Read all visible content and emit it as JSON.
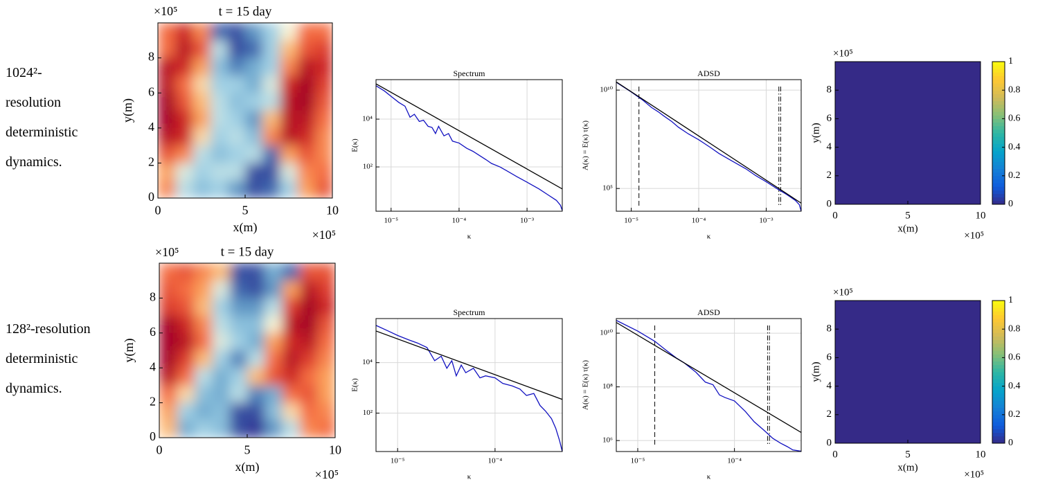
{
  "row_labels": [
    [
      "1024²-",
      "resolution",
      "deterministic",
      "dynamics."
    ],
    [
      "128²-resolution",
      "deterministic",
      "dynamics."
    ]
  ],
  "chart_data": [
    {
      "type": "heatmap",
      "title": "t = 15 day",
      "xlabel": "x(m)",
      "ylabel": "y(m)",
      "x_multiplier": "×10⁵",
      "y_multiplier": "×10⁵",
      "colormap": "RdYlBu_r",
      "clim": [
        -1,
        1
      ],
      "xlim": [
        0,
        1000000
      ],
      "ylim": [
        0,
        1000000
      ],
      "xticks": [
        {
          "value": 0,
          "label": "0"
        },
        {
          "value": 500000,
          "label": "5"
        },
        {
          "value": 1000000,
          "label": "10"
        }
      ],
      "yticks": [
        {
          "value": 0,
          "label": "0"
        },
        {
          "value": 200000,
          "label": "2"
        },
        {
          "value": 400000,
          "label": "4"
        },
        {
          "value": 600000,
          "label": "6"
        },
        {
          "value": 800000,
          "label": "8"
        }
      ],
      "z": [
        [
          0.5,
          0.8,
          0.4,
          -0.8,
          -0.9,
          -0.6,
          -0.3,
          0,
          0.5,
          0.5
        ],
        [
          0.5,
          0.9,
          0.6,
          -0.2,
          -0.9,
          -0.8,
          -0.3,
          0.2,
          0.6,
          0.7
        ],
        [
          0.9,
          0.8,
          0.3,
          -0.4,
          -0.7,
          -0.5,
          -0.3,
          0.4,
          0.9,
          0.8
        ],
        [
          0.9,
          0.5,
          0.1,
          -0.3,
          -0.3,
          -0.5,
          -0.1,
          0.8,
          1,
          0.7
        ],
        [
          1,
          0.6,
          0.2,
          -0.2,
          -0.4,
          -0.3,
          -0.2,
          0.9,
          1,
          0.6
        ],
        [
          1,
          0.8,
          0.3,
          -0.2,
          -0.3,
          -0.6,
          0.2,
          0.9,
          0.9,
          0.5
        ],
        [
          0.9,
          0.8,
          0.1,
          -0.3,
          -0.2,
          -0.4,
          0.4,
          0.9,
          0.8,
          0.4
        ],
        [
          0.6,
          0.4,
          -0.2,
          -0.4,
          -0.3,
          -0.2,
          -0.8,
          0.3,
          0.6,
          0.4
        ],
        [
          0.3,
          -0.1,
          -0.3,
          -0.2,
          -0.2,
          -0.9,
          -0.9,
          -0.1,
          0.4,
          0.5
        ],
        [
          0.4,
          -0.2,
          -0.4,
          -0.3,
          -0.6,
          -0.9,
          -0.8,
          -0.3,
          0.3,
          0.6
        ]
      ]
    },
    {
      "type": "line",
      "title": "Spectrum",
      "xlabel": "κ",
      "ylabel": "E(κ)",
      "xscale": "log",
      "yscale": "log",
      "grid": true,
      "xlim": [
        6e-06,
        0.0033
      ],
      "ylim": [
        1.4,
        450000
      ],
      "xticks": [
        {
          "value": 1e-05,
          "label": "10⁻⁵"
        },
        {
          "value": 0.0001,
          "label": "10⁻⁴"
        },
        {
          "value": 0.001,
          "label": "10⁻³"
        }
      ],
      "yticks": [
        {
          "value": 100,
          "label": "10²"
        },
        {
          "value": 10000,
          "label": "10⁴"
        }
      ],
      "series": [
        {
          "color": "#1010c0",
          "x": [
            6e-06,
            8e-06,
            1e-05,
            1.3e-05,
            1.6e-05,
            1.9e-05,
            2.2e-05,
            2.6e-05,
            3e-05,
            3.5e-05,
            4e-05,
            4.5e-05,
            5e-05,
            6e-05,
            7e-05,
            8e-05,
            0.0001,
            0.00013,
            0.00016,
            0.0002,
            0.00025,
            0.0003,
            0.0004,
            0.0005,
            0.0007,
            0.001,
            0.0015,
            0.002,
            0.0027,
            0.0031,
            0.0033
          ],
          "values": [
            250000,
            150000,
            90000,
            50000,
            35000,
            12000,
            16000,
            8000,
            9000,
            5000,
            4500,
            2500,
            5000,
            2000,
            2500,
            1200,
            1000,
            600,
            450,
            300,
            200,
            140,
            100,
            70,
            40,
            23,
            12,
            7,
            4,
            2.5,
            1.5
          ]
        },
        {
          "color": "#000000",
          "x": [
            6e-06,
            0.0033
          ],
          "values": [
            300000,
            12
          ]
        }
      ]
    },
    {
      "type": "line",
      "title": "ADSD",
      "xlabel": "κ",
      "ylabel": "A(κ) = E(κ) τ(κ)",
      "xscale": "log",
      "yscale": "log",
      "grid": true,
      "xlim": [
        6e-06,
        0.0033
      ],
      "ylim": [
        7000,
        34000000000
      ],
      "xticks": [
        {
          "value": 1e-05,
          "label": "10⁻⁵"
        },
        {
          "value": 0.0001,
          "label": "10⁻⁴"
        },
        {
          "value": 0.001,
          "label": "10⁻³"
        }
      ],
      "yticks": [
        {
          "value": 100000,
          "label": "10⁵"
        },
        {
          "value": 10000000000,
          "label": "10¹⁰"
        }
      ],
      "vlines": [
        {
          "value": 1.3e-05,
          "style": "dashed"
        },
        {
          "value": 0.00154,
          "style": "dashdot"
        },
        {
          "value": 0.00164,
          "style": "dashdot"
        }
      ],
      "series": [
        {
          "color": "#1010c0",
          "x": [
            6e-06,
            1e-05,
            1.5e-05,
            2e-05,
            2.5e-05,
            3e-05,
            4e-05,
            5e-05,
            7e-05,
            0.0001,
            0.00015,
            0.0002,
            0.0003,
            0.0005,
            0.0007,
            0.001,
            0.0015,
            0.002,
            0.0027,
            0.0031,
            0.0033
          ],
          "values": [
            25000000000,
            8000000000,
            3000000000,
            1300000000,
            800000000,
            500000000,
            250000000,
            130000000,
            60000000,
            30000000,
            12000000,
            6000000,
            2700000,
            1000000,
            450000,
            220000,
            90000,
            50000,
            25000,
            15000,
            7000
          ]
        },
        {
          "color": "#000000",
          "x": [
            6e-06,
            0.0033
          ],
          "values": [
            26000000000,
            18000
          ]
        }
      ]
    },
    {
      "type": "heatmap",
      "x_multiplier": "×10⁵",
      "y_multiplier": "×10⁵",
      "xlabel": "x(m)",
      "ylabel": "y(m)",
      "colormap": "parula",
      "clim": [
        0,
        1
      ],
      "cticks": [
        0,
        0.2,
        0.4,
        0.6,
        0.8,
        1
      ],
      "xlim": [
        0,
        1000000
      ],
      "ylim": [
        0,
        1000000
      ],
      "xticks": [
        {
          "value": 0,
          "label": "0"
        },
        {
          "value": 500000,
          "label": "5"
        },
        {
          "value": 1000000,
          "label": "10"
        }
      ],
      "yticks": [
        {
          "value": 0,
          "label": "0"
        },
        {
          "value": 200000,
          "label": "2"
        },
        {
          "value": 400000,
          "label": "4"
        },
        {
          "value": 600000,
          "label": "6"
        },
        {
          "value": 800000,
          "label": "8"
        }
      ],
      "z": [
        [
          0
        ]
      ]
    },
    {
      "type": "heatmap",
      "title": "t = 15 day",
      "xlabel": "x(m)",
      "ylabel": "y(m)",
      "x_multiplier": "×10⁵",
      "y_multiplier": "×10⁵",
      "colormap": "RdYlBu_r",
      "clim": [
        -1,
        1
      ],
      "xlim": [
        0,
        1000000
      ],
      "ylim": [
        0,
        1000000
      ],
      "xticks": [
        {
          "value": 0,
          "label": "0"
        },
        {
          "value": 500000,
          "label": "5"
        },
        {
          "value": 1000000,
          "label": "10"
        }
      ],
      "yticks": [
        {
          "value": 0,
          "label": "0"
        },
        {
          "value": 200000,
          "label": "2"
        },
        {
          "value": 400000,
          "label": "4"
        },
        {
          "value": 600000,
          "label": "6"
        },
        {
          "value": 800000,
          "label": "8"
        }
      ],
      "z": [
        [
          0.5,
          0.6,
          0.4,
          0.2,
          -0.9,
          -0.9,
          -0.5,
          -0.8,
          0.6,
          0.6
        ],
        [
          0.6,
          0.5,
          0.3,
          -0.1,
          -0.8,
          -0.9,
          -0.6,
          0.3,
          0.9,
          0.7
        ],
        [
          0.7,
          0.6,
          0.2,
          -0.3,
          -0.6,
          -0.6,
          -0.2,
          0.7,
          1,
          0.8
        ],
        [
          1,
          0.8,
          0.4,
          -0.2,
          -0.4,
          -0.4,
          0,
          0.9,
          1,
          0.6
        ],
        [
          1,
          0.9,
          0.5,
          -0.1,
          -0.3,
          -0.5,
          0.3,
          0.8,
          0.9,
          0.5
        ],
        [
          1,
          0.7,
          0.2,
          -0.3,
          -0.7,
          -0.2,
          0.5,
          0.9,
          0.7,
          0.4
        ],
        [
          0.9,
          0.5,
          -0.2,
          -0.5,
          -0.3,
          0.2,
          0.6,
          0.8,
          0.5,
          0.3
        ],
        [
          0.5,
          0.1,
          -0.4,
          -0.5,
          -0.2,
          -0.7,
          -0.5,
          0.5,
          0.6,
          0.3
        ],
        [
          0.3,
          -0.3,
          -0.5,
          -0.4,
          -0.9,
          -0.9,
          -0.4,
          0.1,
          0.5,
          0.4
        ],
        [
          0.2,
          -0.5,
          -0.3,
          -0.4,
          -0.9,
          -1,
          -0.6,
          -0.2,
          0.4,
          0.5
        ]
      ]
    },
    {
      "type": "line",
      "title": "Spectrum",
      "xlabel": "κ",
      "ylabel": "E(κ)",
      "xscale": "log",
      "yscale": "log",
      "grid": true,
      "xlim": [
        6e-06,
        0.00049
      ],
      "ylim": [
        3,
        560000
      ],
      "xticks": [
        {
          "value": 1e-05,
          "label": "10⁻⁵"
        },
        {
          "value": 0.0001,
          "label": "10⁻⁴"
        }
      ],
      "yticks": [
        {
          "value": 100,
          "label": "10²"
        },
        {
          "value": 10000,
          "label": "10⁴"
        }
      ],
      "series": [
        {
          "color": "#1010c0",
          "x": [
            6e-06,
            8e-06,
            1e-05,
            1.3e-05,
            1.6e-05,
            2e-05,
            2.4e-05,
            2.8e-05,
            3.2e-05,
            3.6e-05,
            4e-05,
            4.5e-05,
            5e-05,
            6e-05,
            7e-05,
            8e-05,
            0.0001,
            0.00012,
            0.00015,
            0.00018,
            0.00021,
            0.00025,
            0.00029,
            0.00033,
            0.00038,
            0.00042,
            0.00046,
            0.00049
          ],
          "values": [
            300000,
            180000,
            120000,
            80000,
            60000,
            40000,
            12000,
            18000,
            6000,
            12000,
            3000,
            8000,
            4000,
            6000,
            2500,
            3000,
            2500,
            1500,
            1200,
            900,
            500,
            600,
            200,
            120,
            60,
            25,
            8,
            3
          ]
        },
        {
          "color": "#000000",
          "x": [
            6e-06,
            0.00049
          ],
          "values": [
            180000,
            350
          ]
        }
      ]
    },
    {
      "type": "line",
      "title": "ADSD",
      "xlabel": "κ",
      "ylabel": "A(κ) = E(κ) τ(κ)",
      "xscale": "log",
      "yscale": "log",
      "grid": true,
      "xlim": [
        6e-06,
        0.00049
      ],
      "ylim": [
        390000,
        35000000000
      ],
      "xticks": [
        {
          "value": 1e-05,
          "label": "10⁻⁵"
        },
        {
          "value": 0.0001,
          "label": "10⁻⁴"
        }
      ],
      "yticks": [
        {
          "value": 1000000,
          "label": "10⁶"
        },
        {
          "value": 100000000,
          "label": "10⁸"
        },
        {
          "value": 10000000000,
          "label": "10¹⁰"
        }
      ],
      "vlines": [
        {
          "value": 1.5e-05,
          "style": "dashed"
        },
        {
          "value": 0.00022,
          "style": "dashdot"
        },
        {
          "value": 0.00023,
          "style": "dashdot"
        }
      ],
      "series": [
        {
          "color": "#1010c0",
          "x": [
            6e-06,
            1e-05,
            1.5e-05,
            2e-05,
            2.5e-05,
            3e-05,
            4e-05,
            5e-05,
            6e-05,
            7e-05,
            8e-05,
            0.0001,
            0.00013,
            0.00016,
            0.0002,
            0.00025,
            0.0003,
            0.00035,
            0.0004,
            0.00049
          ],
          "values": [
            30000000000,
            12000000000,
            5000000000,
            2200000000,
            1200000000,
            800000000,
            350000000,
            150000000,
            120000000,
            50000000,
            40000000,
            30000000,
            12000000,
            5000000,
            2500000,
            1200000,
            800000,
            600000,
            450000,
            400000
          ]
        },
        {
          "color": "#000000",
          "x": [
            6e-06,
            0.00049
          ],
          "values": [
            25000000000,
            2000000
          ]
        }
      ]
    },
    {
      "type": "heatmap",
      "x_multiplier": "×10⁵",
      "y_multiplier": "×10⁵",
      "xlabel": "x(m)",
      "ylabel": "y(m)",
      "colormap": "parula",
      "clim": [
        0,
        1
      ],
      "cticks": [
        0,
        0.2,
        0.4,
        0.6,
        0.8,
        1
      ],
      "xlim": [
        0,
        1000000
      ],
      "ylim": [
        0,
        1000000
      ],
      "xticks": [
        {
          "value": 0,
          "label": "0"
        },
        {
          "value": 500000,
          "label": "5"
        },
        {
          "value": 1000000,
          "label": "10"
        }
      ],
      "yticks": [
        {
          "value": 0,
          "label": "0"
        },
        {
          "value": 200000,
          "label": "2"
        },
        {
          "value": 400000,
          "label": "4"
        },
        {
          "value": 600000,
          "label": "6"
        },
        {
          "value": 800000,
          "label": "8"
        }
      ],
      "z": [
        [
          0
        ]
      ]
    }
  ]
}
